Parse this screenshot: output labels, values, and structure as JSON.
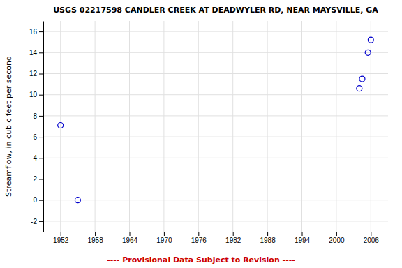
{
  "chart_data": {
    "type": "scatter",
    "title": "USGS 02217598 CANDLER CREEK AT DEADWYLER RD, NEAR MAYSVILLE, GA",
    "y_label": "Streamflow, in cubic feet per second",
    "x": [
      1952.0,
      1955.0,
      2004.0,
      2004.5,
      2005.5,
      2006.0
    ],
    "values": [
      7.1,
      0.0,
      10.6,
      11.5,
      14.0,
      15.2
    ],
    "color": "#0000cc",
    "marker": "open-circle",
    "xlim": [
      1949,
      2009
    ],
    "ylim": [
      -3,
      17
    ],
    "xticks": [
      1952,
      1958,
      1964,
      1970,
      1976,
      1982,
      1988,
      1994,
      2000,
      2006
    ],
    "yticks": [
      -2,
      0,
      2,
      4,
      6,
      8,
      10,
      12,
      14,
      16
    ],
    "grid": true,
    "annotations": [
      {
        "text": "---- Provisional Data Subject to Revision ----",
        "color": "#cc0000"
      }
    ]
  }
}
